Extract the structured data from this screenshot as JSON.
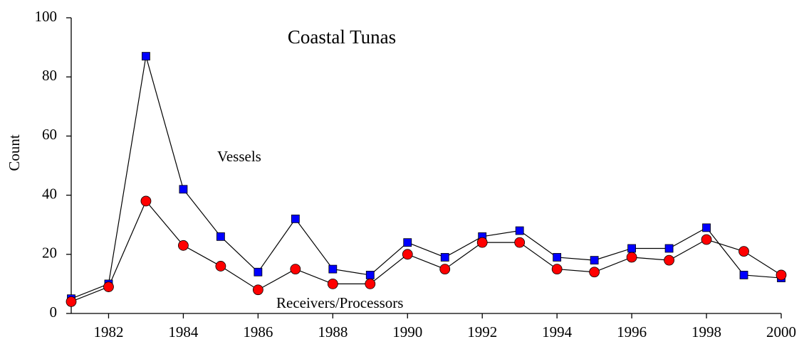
{
  "chart_data": {
    "type": "line",
    "title": "Coastal Tunas",
    "y_label": "Count",
    "x": [
      1981,
      1982,
      1983,
      1984,
      1985,
      1986,
      1987,
      1988,
      1989,
      1990,
      1991,
      1992,
      1993,
      1994,
      1995,
      1996,
      1997,
      1998,
      1999,
      2000
    ],
    "series": [
      {
        "name": "Vessels",
        "color": "#0000ff",
        "marker": "square",
        "values": [
          5,
          10,
          87,
          42,
          26,
          14,
          32,
          15,
          13,
          24,
          19,
          26,
          28,
          19,
          18,
          22,
          22,
          29,
          13,
          12
        ]
      },
      {
        "name": "Receivers/Processors",
        "color": "#ff0000",
        "marker": "circle",
        "values": [
          4,
          9,
          38,
          23,
          16,
          8,
          15,
          10,
          10,
          20,
          15,
          24,
          24,
          15,
          14,
          19,
          18,
          25,
          21,
          13
        ]
      }
    ],
    "line_color": "#000000",
    "xlim": [
      1981,
      2000
    ],
    "xticks": [
      1982,
      1984,
      1986,
      1988,
      1990,
      1992,
      1994,
      1996,
      1998,
      2000
    ],
    "ylim": [
      0,
      100
    ],
    "yticks": [
      0,
      20,
      40,
      60,
      80,
      100
    ],
    "grid": false
  }
}
